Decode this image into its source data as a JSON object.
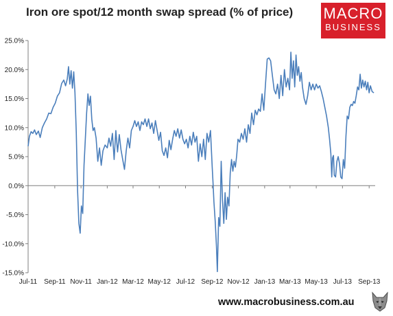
{
  "brand": {
    "logo_line1": "MACRO",
    "logo_line2": "BUSINESS",
    "logo_color": "#d8202b",
    "website": "www.macrobusiness.com.au",
    "mascot_icon": "wolf-icon"
  },
  "chart_data": {
    "type": "line",
    "title": "Iron ore spot/12 month swap spread (% of price)",
    "xlabel": "",
    "ylabel": "",
    "line_color": "#4a7ebb",
    "ylim": [
      -15,
      25
    ],
    "xlim": [
      "2011-07-01",
      "2013-09-15"
    ],
    "grid": false,
    "legend": "none",
    "y_ticks": [
      {
        "value": 25,
        "label": "25.0%"
      },
      {
        "value": 20,
        "label": "20.0%"
      },
      {
        "value": 15,
        "label": "15.0%"
      },
      {
        "value": 10,
        "label": "10.0%"
      },
      {
        "value": 5,
        "label": "5.0%"
      },
      {
        "value": 0,
        "label": "0.0%"
      },
      {
        "value": -5,
        "label": "-5.0%"
      },
      {
        "value": -10,
        "label": "-10.0%"
      },
      {
        "value": -15,
        "label": "-15.0%"
      }
    ],
    "x_ticks": [
      {
        "date": "2011-07-01",
        "label": "Jul-11"
      },
      {
        "date": "2011-09-01",
        "label": "Sep-11"
      },
      {
        "date": "2011-11-01",
        "label": "Nov-11"
      },
      {
        "date": "2012-01-01",
        "label": "Jan-12"
      },
      {
        "date": "2012-03-01",
        "label": "Mar-12"
      },
      {
        "date": "2012-05-01",
        "label": "May-12"
      },
      {
        "date": "2012-07-01",
        "label": "Jul-12"
      },
      {
        "date": "2012-09-01",
        "label": "Sep-12"
      },
      {
        "date": "2012-11-01",
        "label": "Nov-12"
      },
      {
        "date": "2013-01-01",
        "label": "Jan-13"
      },
      {
        "date": "2013-03-01",
        "label": "Mar-13"
      },
      {
        "date": "2013-05-01",
        "label": "May-13"
      },
      {
        "date": "2013-07-01",
        "label": "Jul-13"
      },
      {
        "date": "2013-09-01",
        "label": "Sep-13"
      }
    ],
    "series": [
      {
        "values": [
          [
            "2011-07-01",
            6.8
          ],
          [
            "2011-07-04",
            8.5
          ],
          [
            "2011-07-08",
            9.3
          ],
          [
            "2011-07-12",
            9.0
          ],
          [
            "2011-07-16",
            9.6
          ],
          [
            "2011-07-20",
            8.8
          ],
          [
            "2011-07-25",
            9.4
          ],
          [
            "2011-07-29",
            8.3
          ],
          [
            "2011-08-03",
            10.0
          ],
          [
            "2011-08-08",
            10.8
          ],
          [
            "2011-08-13",
            11.5
          ],
          [
            "2011-08-18",
            12.5
          ],
          [
            "2011-08-23",
            12.4
          ],
          [
            "2011-08-28",
            13.5
          ],
          [
            "2011-09-02",
            14.2
          ],
          [
            "2011-09-07",
            15.4
          ],
          [
            "2011-09-12",
            16.0
          ],
          [
            "2011-09-17",
            17.6
          ],
          [
            "2011-09-22",
            18.2
          ],
          [
            "2011-09-26",
            17.2
          ],
          [
            "2011-09-30",
            18.4
          ],
          [
            "2011-10-03",
            20.5
          ],
          [
            "2011-10-06",
            17.5
          ],
          [
            "2011-10-09",
            19.8
          ],
          [
            "2011-10-12",
            16.8
          ],
          [
            "2011-10-15",
            19.6
          ],
          [
            "2011-10-18",
            16.0
          ],
          [
            "2011-10-21",
            9.2
          ],
          [
            "2011-10-24",
            -0.8
          ],
          [
            "2011-10-27",
            -6.5
          ],
          [
            "2011-10-30",
            -8.2
          ],
          [
            "2011-11-02",
            -3.5
          ],
          [
            "2011-11-05",
            -4.8
          ],
          [
            "2011-11-08",
            3.5
          ],
          [
            "2011-11-11",
            8.0
          ],
          [
            "2011-11-14",
            12.5
          ],
          [
            "2011-11-17",
            15.8
          ],
          [
            "2011-11-20",
            13.8
          ],
          [
            "2011-11-23",
            15.4
          ],
          [
            "2011-11-26",
            11.5
          ],
          [
            "2011-11-29",
            9.5
          ],
          [
            "2011-12-02",
            10.0
          ],
          [
            "2011-12-06",
            8.2
          ],
          [
            "2011-12-10",
            4.2
          ],
          [
            "2011-12-14",
            6.5
          ],
          [
            "2011-12-18",
            3.5
          ],
          [
            "2011-12-22",
            6.0
          ],
          [
            "2011-12-27",
            7.0
          ],
          [
            "2012-01-01",
            6.5
          ],
          [
            "2012-01-05",
            8.2
          ],
          [
            "2012-01-09",
            6.8
          ],
          [
            "2012-01-13",
            9.0
          ],
          [
            "2012-01-17",
            4.5
          ],
          [
            "2012-01-21",
            9.5
          ],
          [
            "2012-01-25",
            5.8
          ],
          [
            "2012-01-29",
            8.8
          ],
          [
            "2012-02-02",
            6.2
          ],
          [
            "2012-02-06",
            4.5
          ],
          [
            "2012-02-10",
            2.8
          ],
          [
            "2012-02-14",
            6.0
          ],
          [
            "2012-02-18",
            8.2
          ],
          [
            "2012-02-22",
            6.5
          ],
          [
            "2012-02-26",
            9.5
          ],
          [
            "2012-03-01",
            10.2
          ],
          [
            "2012-03-05",
            11.2
          ],
          [
            "2012-03-09",
            10.2
          ],
          [
            "2012-03-13",
            11.0
          ],
          [
            "2012-03-17",
            9.5
          ],
          [
            "2012-03-21",
            11.0
          ],
          [
            "2012-03-25",
            10.5
          ],
          [
            "2012-03-29",
            11.5
          ],
          [
            "2012-04-02",
            10.2
          ],
          [
            "2012-04-06",
            11.5
          ],
          [
            "2012-04-10",
            9.8
          ],
          [
            "2012-04-14",
            10.8
          ],
          [
            "2012-04-18",
            9.0
          ],
          [
            "2012-04-22",
            11.2
          ],
          [
            "2012-04-26",
            9.5
          ],
          [
            "2012-04-30",
            7.8
          ],
          [
            "2012-05-04",
            9.2
          ],
          [
            "2012-05-08",
            6.0
          ],
          [
            "2012-05-12",
            5.2
          ],
          [
            "2012-05-16",
            6.5
          ],
          [
            "2012-05-20",
            4.8
          ],
          [
            "2012-05-24",
            7.8
          ],
          [
            "2012-05-28",
            6.2
          ],
          [
            "2012-06-01",
            8.0
          ],
          [
            "2012-06-05",
            9.5
          ],
          [
            "2012-06-09",
            8.5
          ],
          [
            "2012-06-13",
            9.8
          ],
          [
            "2012-06-17",
            8.2
          ],
          [
            "2012-06-21",
            9.6
          ],
          [
            "2012-06-25",
            8.0
          ],
          [
            "2012-06-29",
            7.2
          ],
          [
            "2012-07-03",
            8.0
          ],
          [
            "2012-07-07",
            6.5
          ],
          [
            "2012-07-11",
            8.5
          ],
          [
            "2012-07-15",
            7.0
          ],
          [
            "2012-07-19",
            9.2
          ],
          [
            "2012-07-23",
            7.5
          ],
          [
            "2012-07-27",
            8.5
          ],
          [
            "2012-07-31",
            4.2
          ],
          [
            "2012-08-04",
            7.2
          ],
          [
            "2012-08-08",
            5.0
          ],
          [
            "2012-08-12",
            8.0
          ],
          [
            "2012-08-16",
            4.5
          ],
          [
            "2012-08-20",
            9.0
          ],
          [
            "2012-08-24",
            7.5
          ],
          [
            "2012-08-28",
            9.5
          ],
          [
            "2012-09-01",
            3.2
          ],
          [
            "2012-09-03",
            0.5
          ],
          [
            "2012-09-05",
            -2.8
          ],
          [
            "2012-09-08",
            -6.2
          ],
          [
            "2012-09-11",
            -10.5
          ],
          [
            "2012-09-13",
            -14.8
          ],
          [
            "2012-09-16",
            -5.5
          ],
          [
            "2012-09-19",
            -7.0
          ],
          [
            "2012-09-22",
            4.2
          ],
          [
            "2012-09-25",
            -2.5
          ],
          [
            "2012-09-28",
            -6.5
          ],
          [
            "2012-10-01",
            -1.2
          ],
          [
            "2012-10-04",
            -5.8
          ],
          [
            "2012-10-07",
            -2.0
          ],
          [
            "2012-10-10",
            -3.5
          ],
          [
            "2012-10-13",
            2.2
          ],
          [
            "2012-10-16",
            4.5
          ],
          [
            "2012-10-19",
            2.5
          ],
          [
            "2012-10-22",
            4.2
          ],
          [
            "2012-10-25",
            3.2
          ],
          [
            "2012-10-28",
            5.2
          ],
          [
            "2012-10-31",
            8.0
          ],
          [
            "2012-11-04",
            7.5
          ],
          [
            "2012-11-08",
            9.0
          ],
          [
            "2012-11-12",
            8.0
          ],
          [
            "2012-11-16",
            9.8
          ],
          [
            "2012-11-20",
            7.5
          ],
          [
            "2012-11-24",
            10.5
          ],
          [
            "2012-11-28",
            9.0
          ],
          [
            "2012-12-02",
            12.5
          ],
          [
            "2012-12-06",
            10.5
          ],
          [
            "2012-12-10",
            13.0
          ],
          [
            "2012-12-14",
            12.2
          ],
          [
            "2012-12-18",
            13.2
          ],
          [
            "2012-12-22",
            12.8
          ],
          [
            "2012-12-26",
            15.8
          ],
          [
            "2012-12-30",
            13.0
          ],
          [
            "2013-01-03",
            17.5
          ],
          [
            "2013-01-07",
            21.8
          ],
          [
            "2013-01-11",
            22.0
          ],
          [
            "2013-01-15",
            21.5
          ],
          [
            "2013-01-19",
            19.0
          ],
          [
            "2013-01-23",
            16.5
          ],
          [
            "2013-01-27",
            15.8
          ],
          [
            "2013-01-31",
            17.5
          ],
          [
            "2013-02-04",
            15.0
          ],
          [
            "2013-02-08",
            19.0
          ],
          [
            "2013-02-12",
            15.5
          ],
          [
            "2013-02-16",
            20.0
          ],
          [
            "2013-02-20",
            17.0
          ],
          [
            "2013-02-24",
            18.5
          ],
          [
            "2013-02-28",
            16.5
          ],
          [
            "2013-03-03",
            23.0
          ],
          [
            "2013-03-06",
            18.5
          ],
          [
            "2013-03-09",
            21.5
          ],
          [
            "2013-03-12",
            17.0
          ],
          [
            "2013-03-15",
            22.5
          ],
          [
            "2013-03-18",
            19.0
          ],
          [
            "2013-03-21",
            20.5
          ],
          [
            "2013-03-24",
            18.0
          ],
          [
            "2013-03-27",
            19.5
          ],
          [
            "2013-03-30",
            17.0
          ],
          [
            "2013-04-03",
            15.0
          ],
          [
            "2013-04-07",
            14.0
          ],
          [
            "2013-04-11",
            15.5
          ],
          [
            "2013-04-15",
            17.8
          ],
          [
            "2013-04-19",
            16.5
          ],
          [
            "2013-04-23",
            17.5
          ],
          [
            "2013-04-27",
            16.5
          ],
          [
            "2013-05-01",
            17.5
          ],
          [
            "2013-05-05",
            16.8
          ],
          [
            "2013-05-09",
            17.2
          ],
          [
            "2013-05-13",
            16.2
          ],
          [
            "2013-05-17",
            15.0
          ],
          [
            "2013-05-21",
            13.5
          ],
          [
            "2013-05-25",
            12.0
          ],
          [
            "2013-05-29",
            10.0
          ],
          [
            "2013-06-01",
            8.0
          ],
          [
            "2013-06-04",
            5.5
          ],
          [
            "2013-06-06",
            1.5
          ],
          [
            "2013-06-08",
            4.8
          ],
          [
            "2013-06-10",
            5.2
          ],
          [
            "2013-06-12",
            1.8
          ],
          [
            "2013-06-15",
            1.5
          ],
          [
            "2013-06-18",
            4.2
          ],
          [
            "2013-06-21",
            5.0
          ],
          [
            "2013-06-24",
            3.8
          ],
          [
            "2013-06-27",
            1.5
          ],
          [
            "2013-06-30",
            1.2
          ],
          [
            "2013-07-03",
            4.5
          ],
          [
            "2013-07-06",
            3.0
          ],
          [
            "2013-07-09",
            8.5
          ],
          [
            "2013-07-12",
            12.0
          ],
          [
            "2013-07-15",
            11.5
          ],
          [
            "2013-07-18",
            13.5
          ],
          [
            "2013-07-21",
            14.0
          ],
          [
            "2013-07-24",
            13.8
          ],
          [
            "2013-07-27",
            14.5
          ],
          [
            "2013-07-30",
            14.2
          ],
          [
            "2013-08-02",
            15.5
          ],
          [
            "2013-08-05",
            17.0
          ],
          [
            "2013-08-08",
            16.5
          ],
          [
            "2013-08-11",
            19.2
          ],
          [
            "2013-08-14",
            16.8
          ],
          [
            "2013-08-17",
            18.2
          ],
          [
            "2013-08-20",
            17.0
          ],
          [
            "2013-08-23",
            18.0
          ],
          [
            "2013-08-26",
            16.5
          ],
          [
            "2013-08-29",
            17.8
          ],
          [
            "2013-09-01",
            16.0
          ],
          [
            "2013-09-04",
            17.2
          ],
          [
            "2013-09-08",
            16.2
          ],
          [
            "2013-09-12",
            16.0
          ]
        ]
      }
    ]
  }
}
